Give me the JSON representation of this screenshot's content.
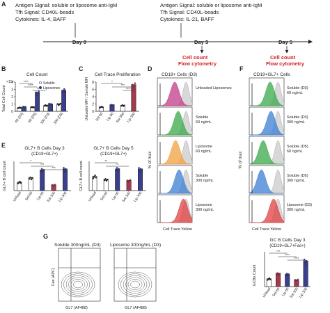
{
  "panels": {
    "A": {
      "label": "A",
      "left_block": [
        "Antigen Signal: soluble or liposome anti-IgM",
        "Tfh Signal: CD40L-beads",
        "Cytokines: IL-4, BAFF"
      ],
      "right_block": [
        "Antigen Signal: soluble or liposome anti-IgM",
        "Tfh Signal: CD40L-beads",
        "Cytokines: IL-21, BAFF"
      ],
      "days": [
        "Day 0",
        "Day 3",
        "Day 5"
      ],
      "readouts": [
        "Cell count",
        "Flow cytometry"
      ],
      "colors": {
        "readout": "#d42020"
      }
    },
    "B": {
      "label": "B",
      "title": "Cell Count",
      "ylabel": "Total Cell Count",
      "yscale_label": "×10⁶",
      "yticks": [
        "0",
        "1",
        "2",
        "3",
        "4"
      ],
      "legend": [
        "Soluble",
        "Liposomes"
      ]
    },
    "C": {
      "label": "C",
      "title": "Cell Trace Proliferation",
      "ylabel": "Unloaded MFI / Sample MFI",
      "yticks": [
        "0",
        "2",
        "4",
        "6",
        "8"
      ]
    },
    "D": {
      "label": "D",
      "title": "CD19+ Cells (D3)",
      "xlabel": "Cell Trace Yellow",
      "ylabel": "% of max",
      "rows": [
        "Unloaded Liposomes",
        "Soluble 60 ng/mL",
        "Liposome 60 ng/mL",
        "Soluble 300 ng/mL",
        "Liposome 300 ng/mL"
      ]
    },
    "E": {
      "label": "E",
      "title1": "GL7+ B Cells Day 3",
      "subtitle1": "(CD19+GL7+)",
      "title2": "GL7+ B Cells Day 5",
      "subtitle2": "(CD19+GL7+)",
      "ylabel": "GL7+ B cell count"
    },
    "F": {
      "label": "F",
      "title": "CD19+GL7+ Cells",
      "xlabel": "Cell Trace Yellow",
      "ylabel": "% of max",
      "rows": [
        "Soluble (D3) 60 ng/mL",
        "Soluble (D3) 300 ng/mL",
        "Soluble (D5) 60 ng/mL",
        "Soluble (D5) 300 ng/mL",
        "Liposome (D3) 300 ng/mL"
      ]
    },
    "G": {
      "label": "G",
      "flow1_title": "Soluble 300ng/mL (D3)",
      "flow2_title": "Liposome 300ng/mL (D3)",
      "flow_xlabel": "GL7 (AF488)",
      "flow_ylabel": "Fas (APC)",
      "bar_title": "GC B Cells Day 3",
      "bar_subtitle": "(CD19+GL7+Fas+)",
      "bar_ylabel": "GCBs Count"
    }
  },
  "chart_data": [
    {
      "type": "bar",
      "id": "B",
      "title": "Cell Count",
      "ylabel": "Total Cell Count",
      "ylim": [
        0,
        4
      ],
      "categories": [
        "60 (D3)",
        "60 (D5)",
        "300 (D3)",
        "300 (D5)"
      ],
      "series": [
        {
          "name": "Soluble",
          "values": [
            0.5,
            0.6,
            0.8,
            1.0
          ],
          "color": "#ffffff"
        },
        {
          "name": "Liposomes",
          "values": [
            0.6,
            2.6,
            1.0,
            2.9
          ],
          "color": "#3a3f8f"
        }
      ],
      "significance": [
        "****",
        "****",
        "****"
      ]
    },
    {
      "type": "bar",
      "id": "C",
      "title": "Cell Trace Proliferation",
      "ylabel": "Unloaded MFI / Sample MFI",
      "ylim": [
        0,
        8
      ],
      "categories": [
        "Sol 60",
        "Lip 60",
        "Sol 300",
        "Lip 300"
      ],
      "values": [
        1.2,
        1.8,
        1.6,
        7.3
      ],
      "colors": [
        "#ffffff",
        "#3a3f8f",
        "#ffffff",
        "#a6394f"
      ],
      "significance": [
        "*",
        "***",
        "****"
      ]
    },
    {
      "type": "bar",
      "id": "E1",
      "title": "GL7+ B Cells Day 3",
      "ylabel": "GL7+ B cell count",
      "categories": [
        "Unload",
        "Sol 60",
        "Lip 60",
        "Sol 300",
        "Lip 300"
      ],
      "values": [
        0.9,
        1.4,
        2.2,
        0.6,
        2.3
      ],
      "colors": [
        "#ffffff",
        "#ffffff",
        "#3a3f8f",
        "#a6394f",
        "#3a3f8f"
      ],
      "significance": [
        "*",
        "***",
        "***"
      ]
    },
    {
      "type": "bar",
      "id": "E2",
      "title": "GL7+ B Cells Day 5",
      "ylabel": "GL7+ B cell count",
      "categories": [
        "Unload",
        "Sol 60",
        "Lip 60",
        "Sol 300",
        "Lip 300"
      ],
      "values": [
        1.0,
        0.8,
        1.5,
        0.7,
        1.5
      ],
      "colors": [
        "#ffffff",
        "#ffffff",
        "#3a3f8f",
        "#a6394f",
        "#3a3f8f"
      ],
      "significance": [
        "**",
        "**"
      ]
    },
    {
      "type": "bar",
      "id": "G",
      "title": "GC B Cells Day 3",
      "ylabel": "GCBs Count",
      "categories": [
        "Unload",
        "Sol 60",
        "Lip 60",
        "Sol 300",
        "Lip 300"
      ],
      "values": [
        0.7,
        1.2,
        1.1,
        0.6,
        2.3
      ],
      "colors": [
        "#ffffff",
        "#a6394f",
        "#3a3f8f",
        "#a6394f",
        "#3a3f8f"
      ],
      "significance": [
        "***",
        "****",
        "****"
      ]
    }
  ]
}
